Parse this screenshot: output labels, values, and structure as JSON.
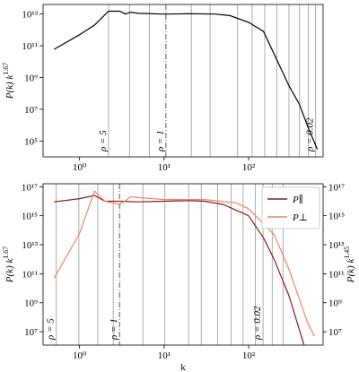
{
  "chart_data": [
    {
      "type": "line",
      "log_x": true,
      "log_y": true,
      "ylabel": {
        "text": "P(k) k",
        "sup": "1.67"
      },
      "xlim": [
        0.37,
        760
      ],
      "ylim": [
        10000.0,
        40000000000000.0
      ],
      "xticks": [
        {
          "value": 1,
          "label": "10⁰"
        },
        {
          "value": 10,
          "label": "10¹"
        },
        {
          "value": 100,
          "label": "10²"
        }
      ],
      "yticks": [
        {
          "value": 100000.0,
          "label": "10⁵"
        },
        {
          "value": 10000000.0,
          "label": "10⁷"
        },
        {
          "value": 1000000000.0,
          "label": "10⁹"
        },
        {
          "value": 100000000000.0,
          "label": "10¹¹"
        },
        {
          "value": 10000000000000.0,
          "label": "10¹³"
        }
      ],
      "vlines": [
        2.2,
        3.9,
        6.7,
        21,
        35,
        74,
        110,
        155,
        215,
        300,
        400,
        510,
        620
      ],
      "vline_dashdot": 10.5,
      "annotations": [
        {
          "text": "ρ = 5",
          "x": 2.2
        },
        {
          "text": "ρ = 1",
          "x": 10.5
        },
        {
          "text": "ρ = 0.02",
          "x": 620
        }
      ],
      "series": [
        {
          "color": "#000000",
          "x": [
            0.5,
            1,
            1.5,
            2.2,
            3,
            3.5,
            4,
            5,
            10,
            20,
            40,
            60,
            100,
            150,
            200,
            300,
            400,
            500,
            650
          ],
          "values": [
            60000000000.0,
            500000000000.0,
            2000000000000.0,
            15000000000000.0,
            15000000000000.0,
            10000000000000.0,
            13000000000000.0,
            11000000000000.0,
            10000000000000.0,
            10500000000000.0,
            10000000000000.0,
            8000000000000.0,
            3000000000000.0,
            800000000000.0,
            30000000000.0,
            300000000.0,
            20000000.0,
            800000.0,
            30000.0
          ]
        }
      ]
    },
    {
      "type": "line",
      "log_x": true,
      "log_y": true,
      "xlabel": "k",
      "ylabel": {
        "text": "P(k) k",
        "sup": "1.67"
      },
      "y2label": {
        "text": "P(k) k",
        "sup": "1.45"
      },
      "xlim": [
        0.37,
        760
      ],
      "ylim": [
        1200000.0,
        1.6e+17
      ],
      "y2lim": [
        1200000.0,
        1.6e+17
      ],
      "xticks": [
        {
          "value": 1,
          "label": "10⁰"
        },
        {
          "value": 10,
          "label": "10¹"
        },
        {
          "value": 100,
          "label": "10²"
        }
      ],
      "yticks": [
        {
          "value": 10000000.0,
          "label": "10⁷"
        },
        {
          "value": 1000000000.0,
          "label": "10⁹"
        },
        {
          "value": 100000000000.0,
          "label": "10¹¹"
        },
        {
          "value": 10000000000000.0,
          "label": "10¹³"
        },
        {
          "value": 1000000000000000.0,
          "label": "10¹⁵"
        },
        {
          "value": 1e+17,
          "label": "10¹⁷"
        }
      ],
      "y2ticks": [
        {
          "value": 10000000.0,
          "label": "10⁷"
        },
        {
          "value": 1000000000.0,
          "label": "10⁹"
        },
        {
          "value": 100000000000.0,
          "label": "10¹¹"
        },
        {
          "value": 10000000000000.0,
          "label": "10¹³"
        },
        {
          "value": 1000000000000000.0,
          "label": "10¹⁵"
        },
        {
          "value": 1e+17,
          "label": "10¹⁷"
        }
      ],
      "ytick_color": "#8b1a1a",
      "y2tick_color": "#f4826b",
      "vlines": [
        0.53,
        0.98,
        1.64,
        2.5,
        5.6,
        10.2,
        19.5,
        27.5,
        43,
        62,
        86,
        120,
        148,
        190,
        255
      ],
      "vline_dashdot": 2.97,
      "annotations": [
        {
          "text": "ρ = 5",
          "x": 0.53
        },
        {
          "text": "ρ = 1",
          "x": 2.97
        },
        {
          "text": "ρ = 0.02",
          "x": 148
        }
      ],
      "legend": "upper right",
      "series": [
        {
          "name": "P∥",
          "color": "#8b1a1a",
          "x": [
            0.5,
            1,
            1.5,
            2,
            3,
            5,
            10,
            20,
            30,
            50,
            100,
            150,
            200,
            300,
            450
          ],
          "values": [
            9000000000000000.0,
            1.5e+16,
            2.5e+16,
            1e+16,
            1e+16,
            9000000000000000.0,
            1e+16,
            1.1e+16,
            1e+16,
            6000000000000000.0,
            1000000000000000.0,
            30000000000000.0,
            1000000000000.0,
            3000000000.0,
            1300000.0
          ]
        },
        {
          "name": "P⊥",
          "color": "#f4826b",
          "axis": "y2",
          "x": [
            0.5,
            1,
            1.5,
            2,
            3,
            4,
            10,
            30,
            70,
            100,
            200,
            300,
            500,
            600
          ],
          "values": [
            50000000000.0,
            60000000000000.0,
            5e+16,
            1e+16,
            6000000000000000.0,
            2e+16,
            1.3e+16,
            1.3e+16,
            8000000000000000.0,
            3000000000000000.0,
            50000000000000.0,
            200000000000.0,
            40000000.0,
            5000000.0
          ]
        }
      ]
    }
  ]
}
